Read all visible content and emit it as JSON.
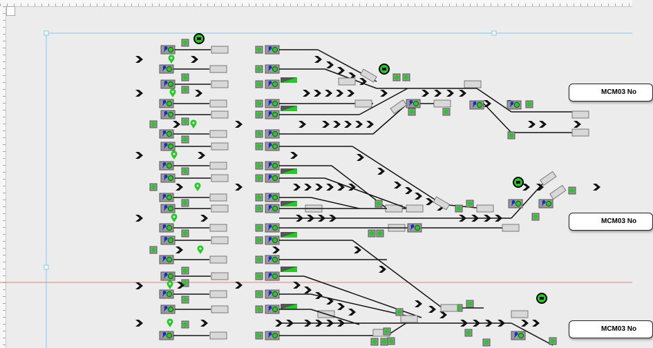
{
  "canvas": {
    "guide_color": "#7fc8f0",
    "red_guide_color": "#e08080",
    "signal_green": "#22cc22",
    "signal_blue": "#1a2ad0",
    "block_gray": "#9a9a9a"
  },
  "labels": [
    {
      "text": "MCM03 No"
    },
    {
      "text": "MCM03 No"
    },
    {
      "text": "MCM03 No"
    }
  ],
  "icons": [
    "camera-icon",
    "location-pin-icon",
    "chevron-right-icon",
    "signal-icon",
    "track-indicator-icon"
  ]
}
